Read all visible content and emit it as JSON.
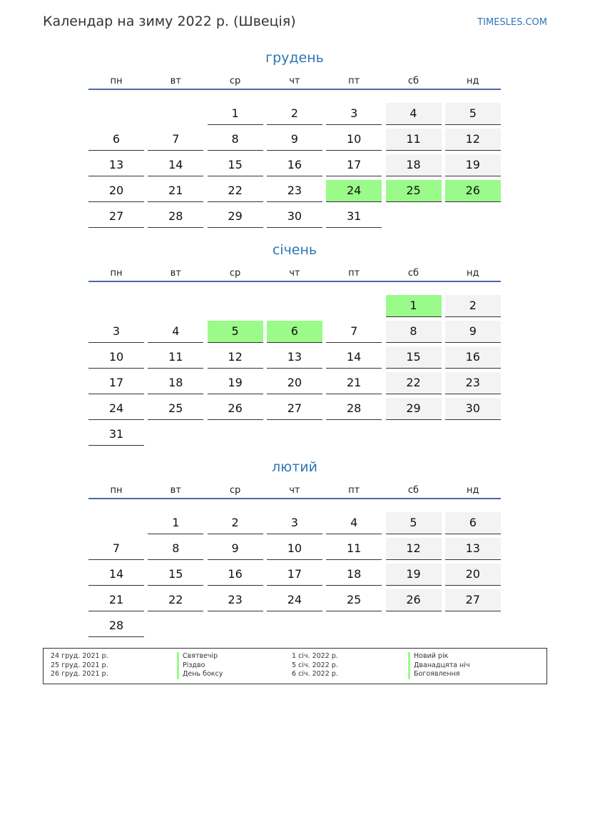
{
  "header": {
    "title": "Календар на зиму 2022 р. (Швеція)",
    "site": "TIMESLES.COM"
  },
  "weekdays": [
    "пн",
    "вт",
    "ср",
    "чт",
    "пт",
    "сб",
    "нд"
  ],
  "colors": {
    "accent": "#2e75b6",
    "holiday": "#9afb8a",
    "weekend": "#f3f3f3",
    "rule": "#4a6aa0"
  },
  "months": [
    {
      "name": "грудень",
      "start_weekday": 3,
      "days": 31,
      "holidays": [
        24,
        25,
        26
      ]
    },
    {
      "name": "січень",
      "start_weekday": 6,
      "days": 31,
      "holidays": [
        1,
        5,
        6
      ]
    },
    {
      "name": "лютий",
      "start_weekday": 2,
      "days": 28,
      "holidays": []
    }
  ],
  "legend": {
    "left": [
      {
        "date": "24 груд. 2021 р.",
        "name": "Святвечір"
      },
      {
        "date": "25 груд. 2021 р.",
        "name": "Різдво"
      },
      {
        "date": "26 груд. 2021 р.",
        "name": "День боксу"
      }
    ],
    "right": [
      {
        "date": "1 січ. 2022 р.",
        "name": "Новий рік"
      },
      {
        "date": "5 січ. 2022 р.",
        "name": "Дванадцята ніч"
      },
      {
        "date": "6 січ. 2022 р.",
        "name": "Богоявлення"
      }
    ]
  }
}
